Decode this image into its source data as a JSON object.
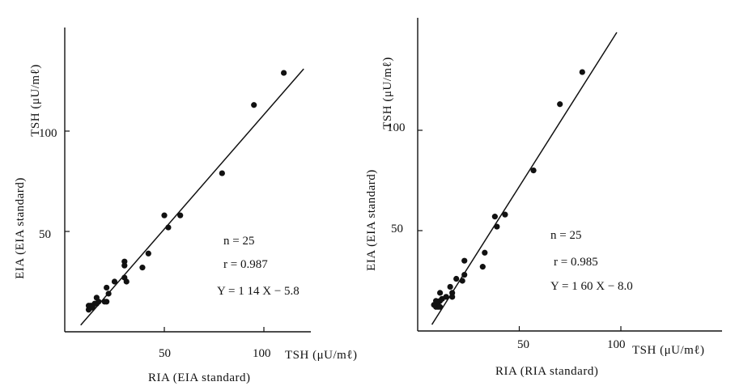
{
  "chart_data": [
    {
      "type": "scatter",
      "xlabel": "RIA (EIA standard)",
      "ylabel": "EIA (EIA standard)",
      "x_unit": "TSH (μU/mℓ)",
      "y_unit": "TSH (μU/mℓ)",
      "xlim": [
        0,
        120
      ],
      "ylim": [
        0,
        135
      ],
      "x_ticks": [
        "50",
        "100"
      ],
      "y_ticks": [
        "50",
        "100"
      ],
      "annotations": [
        "n = 25",
        "r = 0.987",
        "Y = 1 14 X − 5.8"
      ],
      "fit": {
        "slope": 1.14,
        "intercept": -5.8,
        "x_range": [
          8,
          120
        ]
      },
      "points": [
        {
          "x": 110,
          "y": 129
        },
        {
          "x": 95,
          "y": 113
        },
        {
          "x": 79,
          "y": 79
        },
        {
          "x": 58,
          "y": 58
        },
        {
          "x": 52,
          "y": 52
        },
        {
          "x": 50,
          "y": 58
        },
        {
          "x": 42,
          "y": 39
        },
        {
          "x": 39,
          "y": 32
        },
        {
          "x": 30,
          "y": 35
        },
        {
          "x": 30,
          "y": 33
        },
        {
          "x": 30,
          "y": 27
        },
        {
          "x": 31,
          "y": 25
        },
        {
          "x": 25,
          "y": 25
        },
        {
          "x": 21,
          "y": 22
        },
        {
          "x": 22,
          "y": 19
        },
        {
          "x": 21,
          "y": 15
        },
        {
          "x": 20,
          "y": 15
        },
        {
          "x": 17,
          "y": 15
        },
        {
          "x": 16,
          "y": 17
        },
        {
          "x": 16,
          "y": 14
        },
        {
          "x": 15,
          "y": 14
        },
        {
          "x": 13,
          "y": 13
        },
        {
          "x": 12,
          "y": 13
        },
        {
          "x": 14,
          "y": 12
        },
        {
          "x": 12,
          "y": 11
        }
      ]
    },
    {
      "type": "scatter",
      "xlabel": "RIA (RIA standard)",
      "ylabel": "EIA (EIA standard)",
      "x_unit": "TSH (μU/mℓ)",
      "y_unit": "TSH (μU/mℓ)",
      "xlim": [
        0,
        130
      ],
      "ylim": [
        0,
        150
      ],
      "x_ticks": [
        "50",
        "100"
      ],
      "y_ticks": [
        "50",
        "100"
      ],
      "annotations": [
        "n = 25",
        "r = 0.985",
        "Y = 1 60 X − 8.0"
      ],
      "fit": {
        "slope": 1.6,
        "intercept": -8.0,
        "x_range": [
          7,
          98
        ]
      },
      "points": [
        {
          "x": 81,
          "y": 129
        },
        {
          "x": 70,
          "y": 113
        },
        {
          "x": 57,
          "y": 80
        },
        {
          "x": 43,
          "y": 58
        },
        {
          "x": 38,
          "y": 57
        },
        {
          "x": 39,
          "y": 52
        },
        {
          "x": 33,
          "y": 39
        },
        {
          "x": 32,
          "y": 32
        },
        {
          "x": 23,
          "y": 35
        },
        {
          "x": 23,
          "y": 28
        },
        {
          "x": 22,
          "y": 25
        },
        {
          "x": 19,
          "y": 26
        },
        {
          "x": 16,
          "y": 22
        },
        {
          "x": 17,
          "y": 19
        },
        {
          "x": 17,
          "y": 17
        },
        {
          "x": 14,
          "y": 17
        },
        {
          "x": 11,
          "y": 19
        },
        {
          "x": 12,
          "y": 16
        },
        {
          "x": 11,
          "y": 15
        },
        {
          "x": 10,
          "y": 14
        },
        {
          "x": 9,
          "y": 15
        },
        {
          "x": 9,
          "y": 12
        },
        {
          "x": 10,
          "y": 12
        },
        {
          "x": 8,
          "y": 13
        },
        {
          "x": 11,
          "y": 12
        }
      ]
    }
  ]
}
